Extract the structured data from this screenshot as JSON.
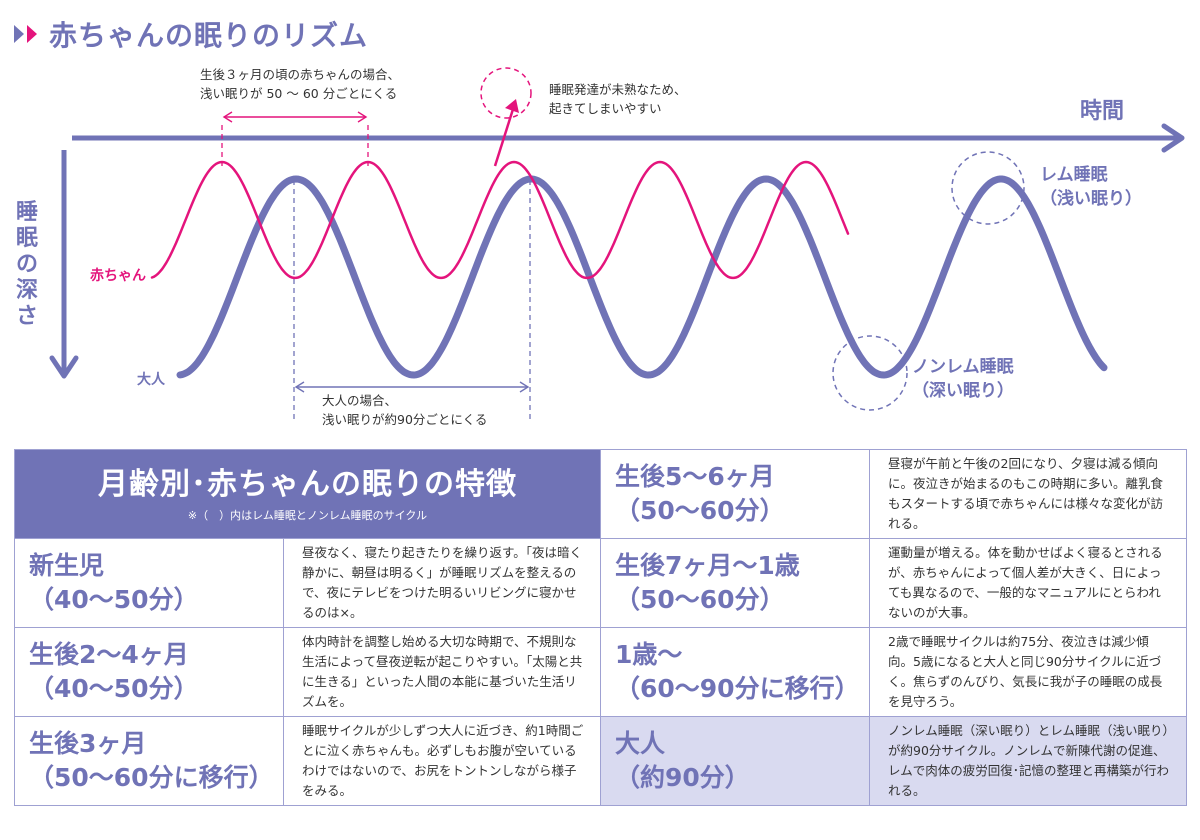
{
  "title": "赤ちゃんの眠りのリズム",
  "colors": {
    "baby": "#e4147c",
    "adult": "#7073b6",
    "header_bg": "#7073b6",
    "adult_row_bg": "#d9daf0"
  },
  "icons": [
    "double-chevron-icon",
    "dashed-circle-icon",
    "arrow-icon"
  ],
  "diagram": {
    "x_axis_label": "時間",
    "y_axis_label": "睡眠の深さ",
    "baby_label": "赤ちゃん",
    "adult_label": "大人",
    "baby_interval_note": [
      "生後３ヶ月の頃の赤ちゃんの場合、",
      "浅い眠りが 50 〜 60 分ごとにくる"
    ],
    "immature_note": [
      "睡眠発達が未熟なため、",
      "起きてしまいやすい"
    ],
    "adult_interval_note": [
      "大人の場合、",
      "浅い眠りが約90分ごとにくる"
    ],
    "rem_label": [
      "レム睡眠",
      "（浅い眠り）"
    ],
    "nonrem_label": [
      "ノンレム睡眠",
      "（深い眠り）"
    ]
  },
  "table": {
    "header_title": "月齢別･赤ちゃんの眠りの特徴",
    "header_note": "※（　）内はレム睡眠とノンレム睡眠のサイクル",
    "rows": [
      {
        "name": "新生児",
        "cycle": "（40〜50分）",
        "desc": "昼夜なく、寝たり起きたりを繰り返す。「夜は暗く静かに、朝昼は明るく」が睡眠リズムを整えるので、夜にテレビをつけた明るいリビングに寝かせるのは×。"
      },
      {
        "name": "生後2〜4ヶ月",
        "cycle": "（40〜50分）",
        "desc": "体内時計を調整し始める大切な時期で、不規則な生活によって昼夜逆転が起こりやすい。「太陽と共に生きる」といった人間の本能に基づいた生活リズムを。"
      },
      {
        "name": "生後3ヶ月",
        "cycle": "（50〜60分に移行）",
        "desc": "睡眠サイクルが少しずつ大人に近づき、約1時間ごとに泣く赤ちゃんも。必ずしもお腹が空いているわけではないので、お尻をトントンしながら様子をみる。"
      },
      {
        "name": "生後5〜6ヶ月",
        "cycle": "（50〜60分）",
        "desc": "昼寝が午前と午後の2回になり、夕寝は減る傾向に。夜泣きが始まるのもこの時期に多い。離乳食もスタートする頃で赤ちゃんには様々な変化が訪れる。"
      },
      {
        "name": "生後7ヶ月〜1歳",
        "cycle": "（50〜60分）",
        "desc": "運動量が増える。体を動かせばよく寝るとされるが、赤ちゃんによって個人差が大きく、日によっても異なるので、一般的なマニュアルにとらわれないのが大事。"
      },
      {
        "name": "1歳〜",
        "cycle": "（60〜90分に移行）",
        "desc": "2歳で睡眠サイクルは約75分、夜泣きは減少傾向。5歳になると大人と同じ90分サイクルに近づく。焦らずのんびり、気長に我が子の睡眠の成長を見守ろう。"
      },
      {
        "name": "大人",
        "cycle": "（約90分）",
        "desc": "ノンレム睡眠（深い眠り）とレム睡眠（浅い眠り）が約90分サイクル。ノンレムで新陳代謝の促進、レムで肉体の疲労回復･記憶の整理と再構築が行われる。"
      }
    ]
  }
}
